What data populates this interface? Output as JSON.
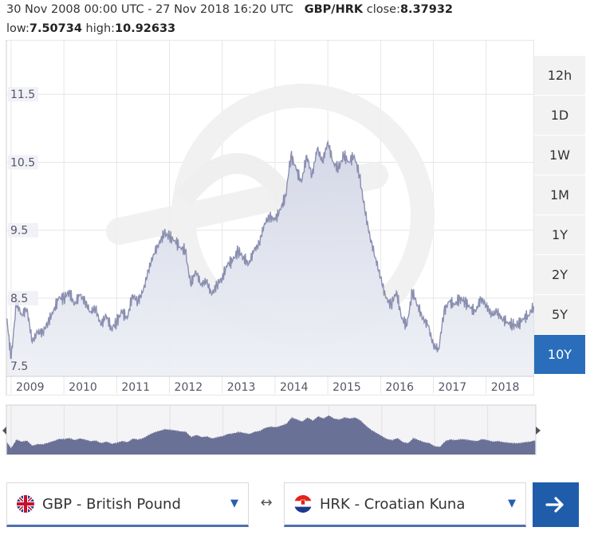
{
  "header": {
    "date_range": "30 Nov 2008 00:00 UTC - 27 Nov 2018 16:20 UTC",
    "pair": "GBP/HRK",
    "close_label": "close:",
    "close_value": "8.37932",
    "low_label": "low:",
    "low_value": "7.50734",
    "high_label": "high:",
    "high_value": "10.92633"
  },
  "range_buttons": [
    "12h",
    "1D",
    "1W",
    "1M",
    "1Y",
    "2Y",
    "5Y",
    "10Y"
  ],
  "active_range": "10Y",
  "selectors": {
    "from_label": "GBP - British Pound",
    "to_label": "HRK - Croatian Kuna",
    "swap_symbol": "↔"
  },
  "colors": {
    "line": "#8a8fb0",
    "area_top": "#d3d6e6",
    "area_bottom": "#eef0f6",
    "navigator_fill": "#6a7197",
    "accent": "#2a6ebb",
    "convert_bg": "#1f5dab",
    "watermark": "#eeeeee"
  },
  "icons": {
    "watermark": "xe-logo",
    "from_flag": "uk-flag-icon",
    "to_flag": "croatia-flag-icon",
    "convert": "arrow-right-icon",
    "dropdown": "chevron-down-icon"
  },
  "chart_data": {
    "type": "area",
    "title": "",
    "xlabel": "",
    "ylabel": "",
    "x_ticks": [
      "2009",
      "2010",
      "2011",
      "2012",
      "2013",
      "2014",
      "2015",
      "2016",
      "2017",
      "2018"
    ],
    "y_ticks": [
      "7.5",
      "8.5",
      "9.5",
      "10.5",
      "11.5"
    ],
    "ylim": [
      7.35,
      12.3
    ],
    "xlim": [
      2008.91,
      2018.91
    ],
    "grid": true,
    "series": [
      {
        "x": [
          2008.92,
          2009.0,
          2009.1,
          2009.2,
          2009.3,
          2009.4,
          2009.5,
          2009.6,
          2009.7,
          2009.8,
          2009.9,
          2010.0,
          2010.1,
          2010.2,
          2010.3,
          2010.4,
          2010.5,
          2010.6,
          2010.7,
          2010.8,
          2010.9,
          2011.0,
          2011.1,
          2011.2,
          2011.3,
          2011.4,
          2011.5,
          2011.6,
          2011.7,
          2011.8,
          2011.9,
          2012.0,
          2012.1,
          2012.2,
          2012.3,
          2012.4,
          2012.5,
          2012.6,
          2012.7,
          2012.8,
          2012.9,
          2013.0,
          2013.1,
          2013.2,
          2013.3,
          2013.4,
          2013.5,
          2013.6,
          2013.7,
          2013.8,
          2013.9,
          2014.0,
          2014.1,
          2014.2,
          2014.3,
          2014.4,
          2014.5,
          2014.6,
          2014.7,
          2014.8,
          2014.9,
          2015.0,
          2015.1,
          2015.2,
          2015.3,
          2015.4,
          2015.5,
          2015.6,
          2015.7,
          2015.8,
          2015.9,
          2016.0,
          2016.1,
          2016.2,
          2016.3,
          2016.4,
          2016.5,
          2016.6,
          2016.7,
          2016.8,
          2016.9,
          2017.0,
          2017.1,
          2017.2,
          2017.3,
          2017.4,
          2017.5,
          2017.6,
          2017.7,
          2017.8,
          2017.9,
          2018.0,
          2018.1,
          2018.2,
          2018.3,
          2018.4,
          2018.5,
          2018.6,
          2018.7,
          2018.8,
          2018.9
        ],
        "values": [
          8.2,
          7.6,
          8.45,
          8.25,
          8.35,
          7.85,
          8.0,
          8.0,
          8.15,
          8.3,
          8.5,
          8.5,
          8.6,
          8.4,
          8.55,
          8.45,
          8.3,
          8.35,
          8.1,
          8.25,
          8.05,
          8.15,
          8.3,
          8.2,
          8.55,
          8.45,
          8.6,
          8.9,
          9.15,
          9.3,
          9.45,
          9.4,
          9.35,
          9.25,
          9.2,
          8.7,
          8.9,
          8.7,
          8.75,
          8.55,
          8.7,
          8.8,
          9.0,
          9.05,
          9.2,
          9.1,
          9.0,
          9.2,
          9.3,
          9.6,
          9.7,
          9.65,
          9.8,
          10.0,
          10.6,
          10.4,
          10.2,
          10.6,
          10.3,
          10.7,
          10.5,
          10.8,
          10.5,
          10.4,
          10.6,
          10.5,
          10.6,
          10.3,
          9.8,
          9.4,
          9.1,
          8.8,
          8.5,
          8.4,
          8.6,
          8.2,
          8.1,
          8.6,
          8.4,
          8.2,
          8.1,
          7.8,
          7.75,
          8.3,
          8.45,
          8.4,
          8.5,
          8.45,
          8.35,
          8.3,
          8.5,
          8.4,
          8.25,
          8.3,
          8.2,
          8.15,
          8.1,
          8.1,
          8.2,
          8.25,
          8.38
        ]
      }
    ]
  }
}
